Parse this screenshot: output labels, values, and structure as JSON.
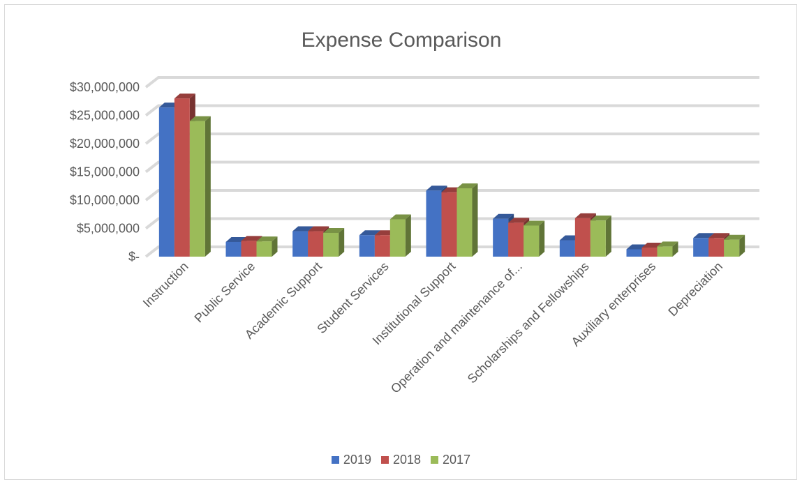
{
  "chart_data": {
    "type": "bar",
    "title": "Expense Comparison",
    "xlabel": "",
    "ylabel": "",
    "categories": [
      "Instruction",
      "Public Service",
      "Academic Support",
      "Student Services",
      "Institutional Support",
      "Operation and maintenance of...",
      "Scholarships and Fellowships",
      "Auxiliary enterprises",
      "Depreciation"
    ],
    "series": [
      {
        "name": "2019",
        "color": "#4472c4",
        "values": [
          26400000,
          2600000,
          4500000,
          3800000,
          11700000,
          6700000,
          2900000,
          1300000,
          3300000
        ]
      },
      {
        "name": "2018",
        "color": "#c0504d",
        "values": [
          28000000,
          2800000,
          4500000,
          3800000,
          11400000,
          6000000,
          6800000,
          1600000,
          3300000
        ]
      },
      {
        "name": "2017",
        "color": "#9bbb59",
        "values": [
          24000000,
          2700000,
          4200000,
          6600000,
          12100000,
          5500000,
          6400000,
          1800000,
          3000000
        ]
      }
    ],
    "y_ticks": [
      "$-",
      "$5,000,000",
      "$10,000,000",
      "$15,000,000",
      "$20,000,000",
      "$25,000,000",
      "$30,000,000"
    ],
    "ylim": [
      0,
      30000000
    ],
    "grid": true,
    "style": "3d-clustered-column",
    "legend_position": "bottom"
  }
}
